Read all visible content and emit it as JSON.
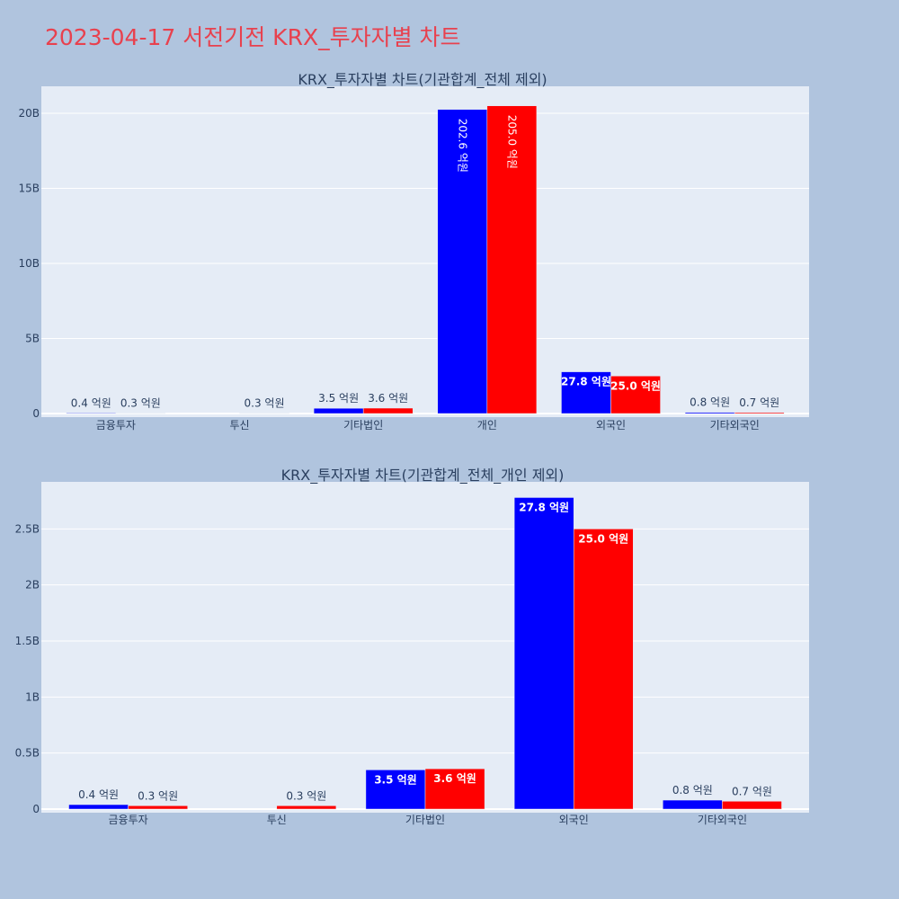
{
  "title": "2023-04-17 서전기전 KRX_투자자별 차트",
  "colors": {
    "series1": "#0000ff",
    "series2": "#ff0000",
    "title": "#e8414e",
    "background": "#b0c4de",
    "plot": "#e5ecf6"
  },
  "chart_data": [
    {
      "type": "bar",
      "title": "KRX_투자자별 차트(기관합계_전체 제외)",
      "categories": [
        "금융투자",
        "투신",
        "기타법인",
        "개인",
        "외국인",
        "기타외국인"
      ],
      "series": [
        {
          "values": [
            40000000,
            0,
            350000000,
            20260000000,
            2780000000,
            80000000
          ],
          "labels": [
            "0.4 억원",
            "",
            "3.5 억원",
            "202.6 억원",
            "27.8 억원",
            "0.8 억원"
          ]
        },
        {
          "values": [
            30000000,
            30000000,
            360000000,
            20500000000,
            2500000000,
            70000000
          ],
          "labels": [
            "0.3 억원",
            "0.3 억원",
            "3.6 억원",
            "205.0 억원",
            "25.0 억원",
            "0.7 억원"
          ]
        }
      ],
      "yticks": [
        "0",
        "5B",
        "10B",
        "15B",
        "20B"
      ],
      "yrange": [
        0,
        21800000000
      ],
      "grid": true
    },
    {
      "type": "bar",
      "title": "KRX_투자자별 차트(기관합계_전체_개인 제외)",
      "categories": [
        "금융투자",
        "투신",
        "기타법인",
        "외국인",
        "기타외국인"
      ],
      "series": [
        {
          "values": [
            40000000,
            0,
            350000000,
            2780000000,
            80000000
          ],
          "labels": [
            "0.4 억원",
            "",
            "3.5 억원",
            "27.8 억원",
            "0.8 억원"
          ]
        },
        {
          "values": [
            30000000,
            30000000,
            360000000,
            2500000000,
            70000000
          ],
          "labels": [
            "0.3 억원",
            "0.3 억원",
            "3.6 억원",
            "25.0 억원",
            "0.7 억원"
          ]
        }
      ],
      "yticks": [
        "0",
        "0.5B",
        "1B",
        "1.5B",
        "2B",
        "2.5B"
      ],
      "yrange": [
        0,
        2920000000
      ],
      "grid": true
    }
  ]
}
